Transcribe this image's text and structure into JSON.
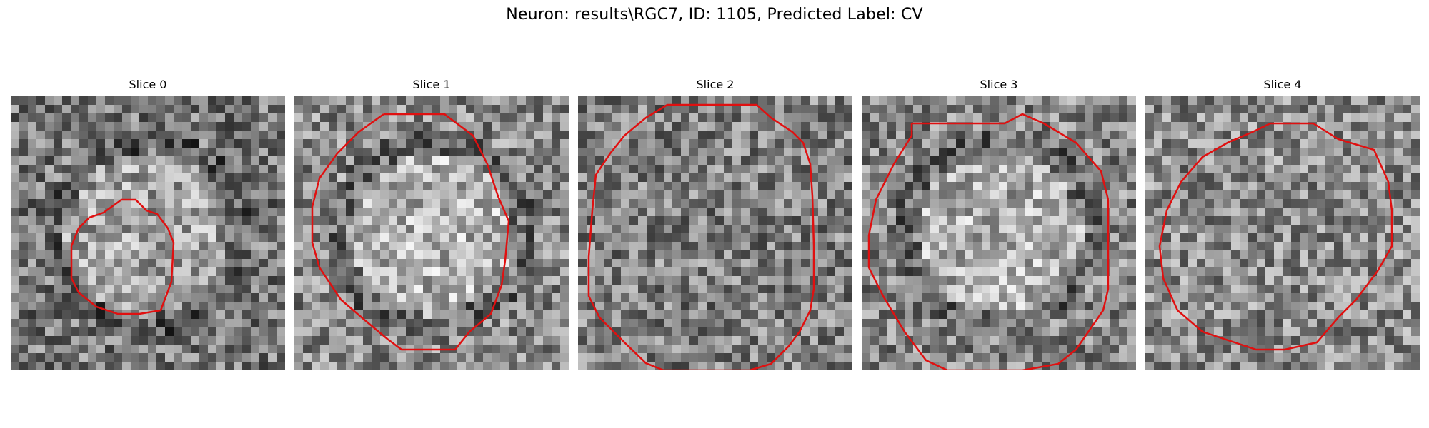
{
  "figure": {
    "title": "Neuron: results\\RGC7, ID: 1105, Predicted Label: CV",
    "contour_color": "#e01010",
    "colormap": "grayscale"
  },
  "panels": [
    {
      "title": "Slice 0",
      "seed": 11,
      "shape": "blob",
      "center_intensity": 0.55
    },
    {
      "title": "Slice 1",
      "seed": 23,
      "shape": "blob",
      "center_intensity": 0.62
    },
    {
      "title": "Slice 2",
      "seed": 37,
      "shape": "noise",
      "center_intensity": 0.5
    },
    {
      "title": "Slice 3",
      "seed": 51,
      "shape": "blob",
      "center_intensity": 0.6
    },
    {
      "title": "Slice 4",
      "seed": 67,
      "shape": "noise",
      "center_intensity": 0.55
    }
  ]
}
